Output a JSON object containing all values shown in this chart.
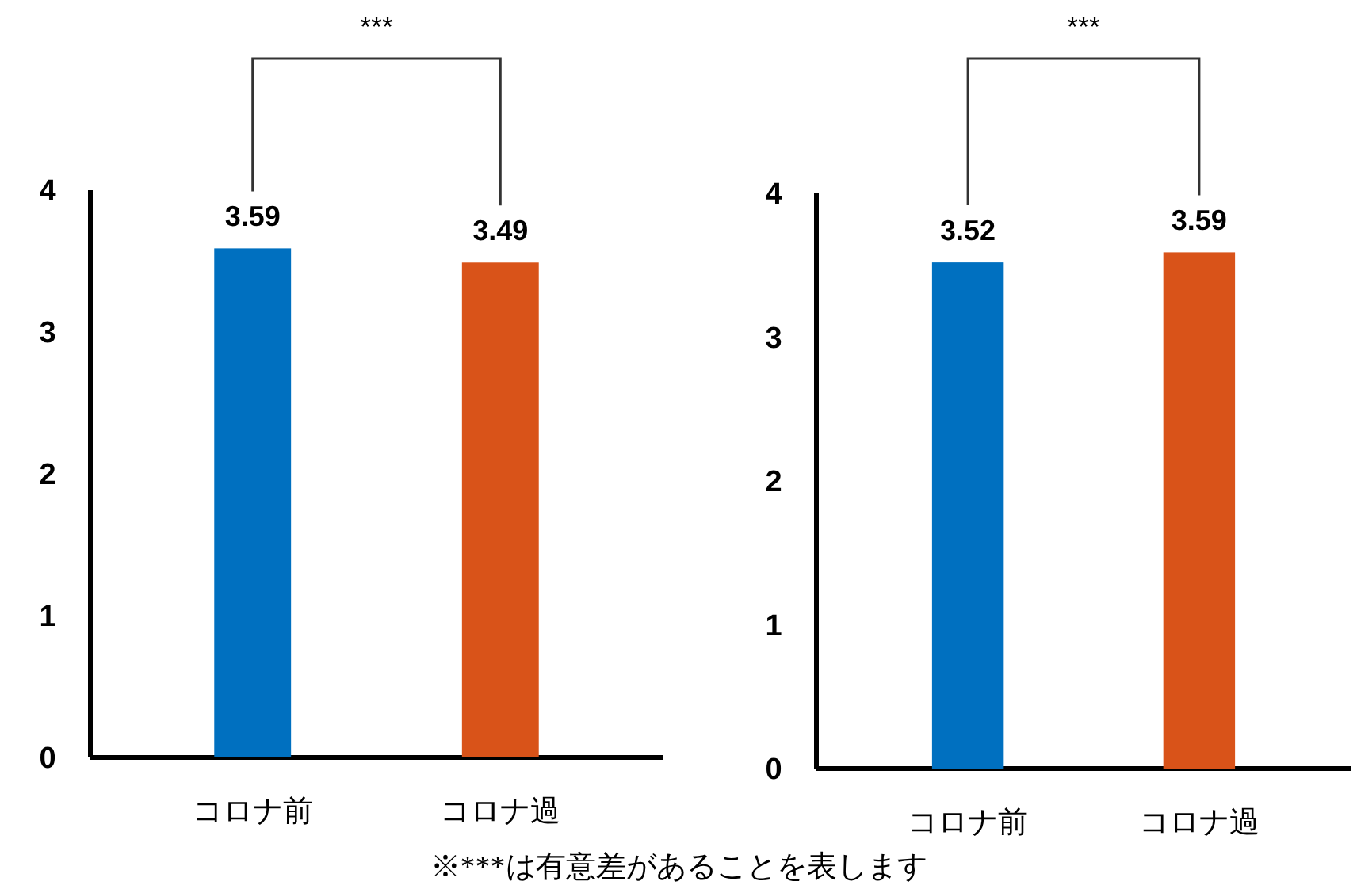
{
  "chart_data": [
    {
      "type": "bar",
      "categories": [
        "コロナ前",
        "コロナ過"
      ],
      "colors": [
        "#0070c0",
        "#d95319"
      ],
      "values": [
        3.59,
        3.49
      ],
      "ylim": [
        0,
        4
      ],
      "yticks": [
        0,
        1,
        2,
        3,
        4
      ],
      "data_labels": true,
      "annotations": [
        "***",
        "※***は有意差があることを表します"
      ]
    },
    {
      "type": "bar",
      "categories": [
        "コロナ前",
        "コロナ過"
      ],
      "colors": [
        "#0070c0",
        "#d95319"
      ],
      "values": [
        3.52,
        3.59
      ],
      "ylim": [
        0,
        4
      ],
      "yticks": [
        0,
        1,
        2,
        3,
        4
      ],
      "data_labels": true,
      "annotations": [
        "***"
      ]
    }
  ]
}
